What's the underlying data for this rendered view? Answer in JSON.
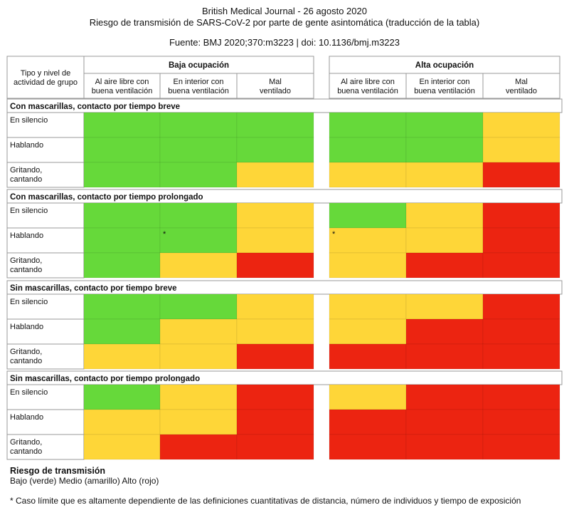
{
  "header": {
    "line1": "British Medical Journal - 26 agosto 2020",
    "line2": "Riesgo de transmisión de SARS-CoV-2 por parte de gente asintomática (traducción de la tabla)",
    "source": "Fuente: BMJ 2020;370:m3223 | doi: 10.1136/bmj.m3223"
  },
  "colors": {
    "green": "#66d93a",
    "yellow": "#fed638",
    "red": "#ec2411",
    "border": "#999999"
  },
  "chart_data": {
    "type": "table",
    "corner_label": [
      "Tipo y nivel de",
      "actividad de grupo"
    ],
    "groups": [
      {
        "name": "Baja ocupación",
        "columns": [
          [
            "Al aire libre con",
            "buena ventilación"
          ],
          [
            "En interior con",
            "buena ventilación"
          ],
          [
            "Mal",
            "ventilado"
          ]
        ]
      },
      {
        "name": "Alta ocupación",
        "columns": [
          [
            "Al aire libre con",
            "buena ventilación"
          ],
          [
            "En interior con",
            "buena ventilación"
          ],
          [
            "Mal",
            "ventilado"
          ]
        ]
      }
    ],
    "sections": [
      {
        "title": "Con mascarillas, contacto por tiempo breve",
        "rows": [
          {
            "label": [
              "En silencio"
            ],
            "values": [
              "green",
              "green",
              "green",
              "green",
              "green",
              "yellow"
            ]
          },
          {
            "label": [
              "Hablando"
            ],
            "values": [
              "green",
              "green",
              "green",
              "green",
              "green",
              "yellow"
            ]
          },
          {
            "label": [
              "Gritando,",
              "cantando"
            ],
            "values": [
              "green",
              "green",
              "yellow",
              "yellow",
              "yellow",
              "red"
            ]
          }
        ]
      },
      {
        "title": "Con mascarillas, contacto por tiempo prolongado",
        "rows": [
          {
            "label": [
              "En silencio"
            ],
            "values": [
              "green",
              "green",
              "yellow",
              "green",
              "yellow",
              "red"
            ]
          },
          {
            "label": [
              "Hablando"
            ],
            "values": [
              "green",
              "green",
              "yellow",
              "yellow",
              "yellow",
              "red"
            ],
            "asterisks": [
              1,
              3
            ]
          },
          {
            "label": [
              "Gritando,",
              "cantando"
            ],
            "values": [
              "green",
              "yellow",
              "red",
              "yellow",
              "red",
              "red"
            ]
          }
        ]
      },
      {
        "title": "Sin mascarillas, contacto por tiempo breve",
        "rows": [
          {
            "label": [
              "En silencio"
            ],
            "values": [
              "green",
              "green",
              "yellow",
              "yellow",
              "yellow",
              "red"
            ]
          },
          {
            "label": [
              "Hablando"
            ],
            "values": [
              "green",
              "yellow",
              "yellow",
              "yellow",
              "red",
              "red"
            ]
          },
          {
            "label": [
              "Gritando,",
              "cantando"
            ],
            "values": [
              "yellow",
              "yellow",
              "red",
              "red",
              "red",
              "red"
            ]
          }
        ]
      },
      {
        "title": "Sin mascarillas, contacto por tiempo prolongado",
        "rows": [
          {
            "label": [
              "En silencio"
            ],
            "values": [
              "green",
              "yellow",
              "red",
              "yellow",
              "red",
              "red"
            ]
          },
          {
            "label": [
              "Hablando"
            ],
            "values": [
              "yellow",
              "yellow",
              "red",
              "red",
              "red",
              "red"
            ]
          },
          {
            "label": [
              "Gritando,",
              "cantando"
            ],
            "values": [
              "yellow",
              "red",
              "red",
              "red",
              "red",
              "red"
            ]
          }
        ]
      }
    ],
    "asterisk": "*",
    "legend_title": "Riesgo de transmisión",
    "legend_text": "Bajo (verde) Medio (amarillo) Alto (rojo)",
    "footnote": "* Caso límite que es altamente dependiente de las definiciones cuantitativas de distancia, número de individuos y tiempo de exposición"
  }
}
